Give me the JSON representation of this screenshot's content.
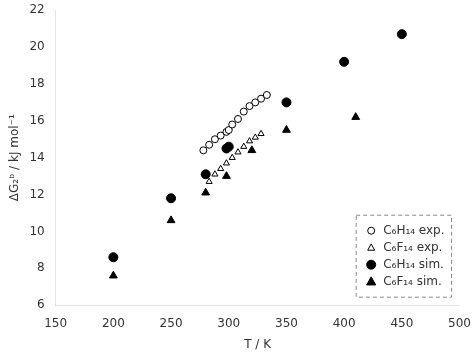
{
  "chart_data": {
    "type": "scatter",
    "xlabel": "T / K",
    "ylabel": "ΔG₂ᵇ / kJ mol⁻¹",
    "xlim": [
      150,
      500
    ],
    "ylim": [
      6,
      22
    ],
    "xticks": [
      150,
      200,
      250,
      300,
      350,
      400,
      450,
      500
    ],
    "yticks": [
      6,
      8,
      10,
      12,
      14,
      16,
      18,
      20,
      22
    ],
    "grid": false,
    "legend": "lower right",
    "series": [
      {
        "name": "C₆H₁₄ exp.",
        "color": "#000000",
        "marker": "circle_open",
        "x": [
          278,
          283,
          288,
          293,
          298,
          300,
          303,
          308,
          313,
          318,
          323,
          328,
          333
        ],
        "values": [
          14.4,
          14.7,
          15.0,
          15.2,
          15.4,
          15.5,
          15.8,
          16.1,
          16.5,
          16.8,
          17.0,
          17.2,
          17.4
        ]
      },
      {
        "name": "C₆F₁₄ exp.",
        "color": "#000000",
        "marker": "triangle_open",
        "x": [
          283,
          288,
          293,
          298,
          303,
          308,
          313,
          318,
          323,
          328
        ],
        "values": [
          12.7,
          13.1,
          13.4,
          13.7,
          14.0,
          14.3,
          14.6,
          14.9,
          15.1,
          15.3
        ]
      },
      {
        "name": "C₆H₁₄ sim.",
        "color": "#000000",
        "marker": "circle",
        "x": [
          200,
          250,
          280,
          298,
          300,
          350,
          400,
          450
        ],
        "values": [
          8.6,
          11.8,
          13.1,
          14.5,
          14.6,
          17.0,
          19.2,
          20.7
        ]
      },
      {
        "name": "C₆F₁₄ sim.",
        "color": "#000000",
        "marker": "triangle",
        "x": [
          200,
          250,
          280,
          298,
          320,
          350,
          410
        ],
        "values": [
          7.6,
          10.6,
          12.1,
          13.0,
          14.4,
          15.5,
          16.2
        ]
      }
    ]
  }
}
